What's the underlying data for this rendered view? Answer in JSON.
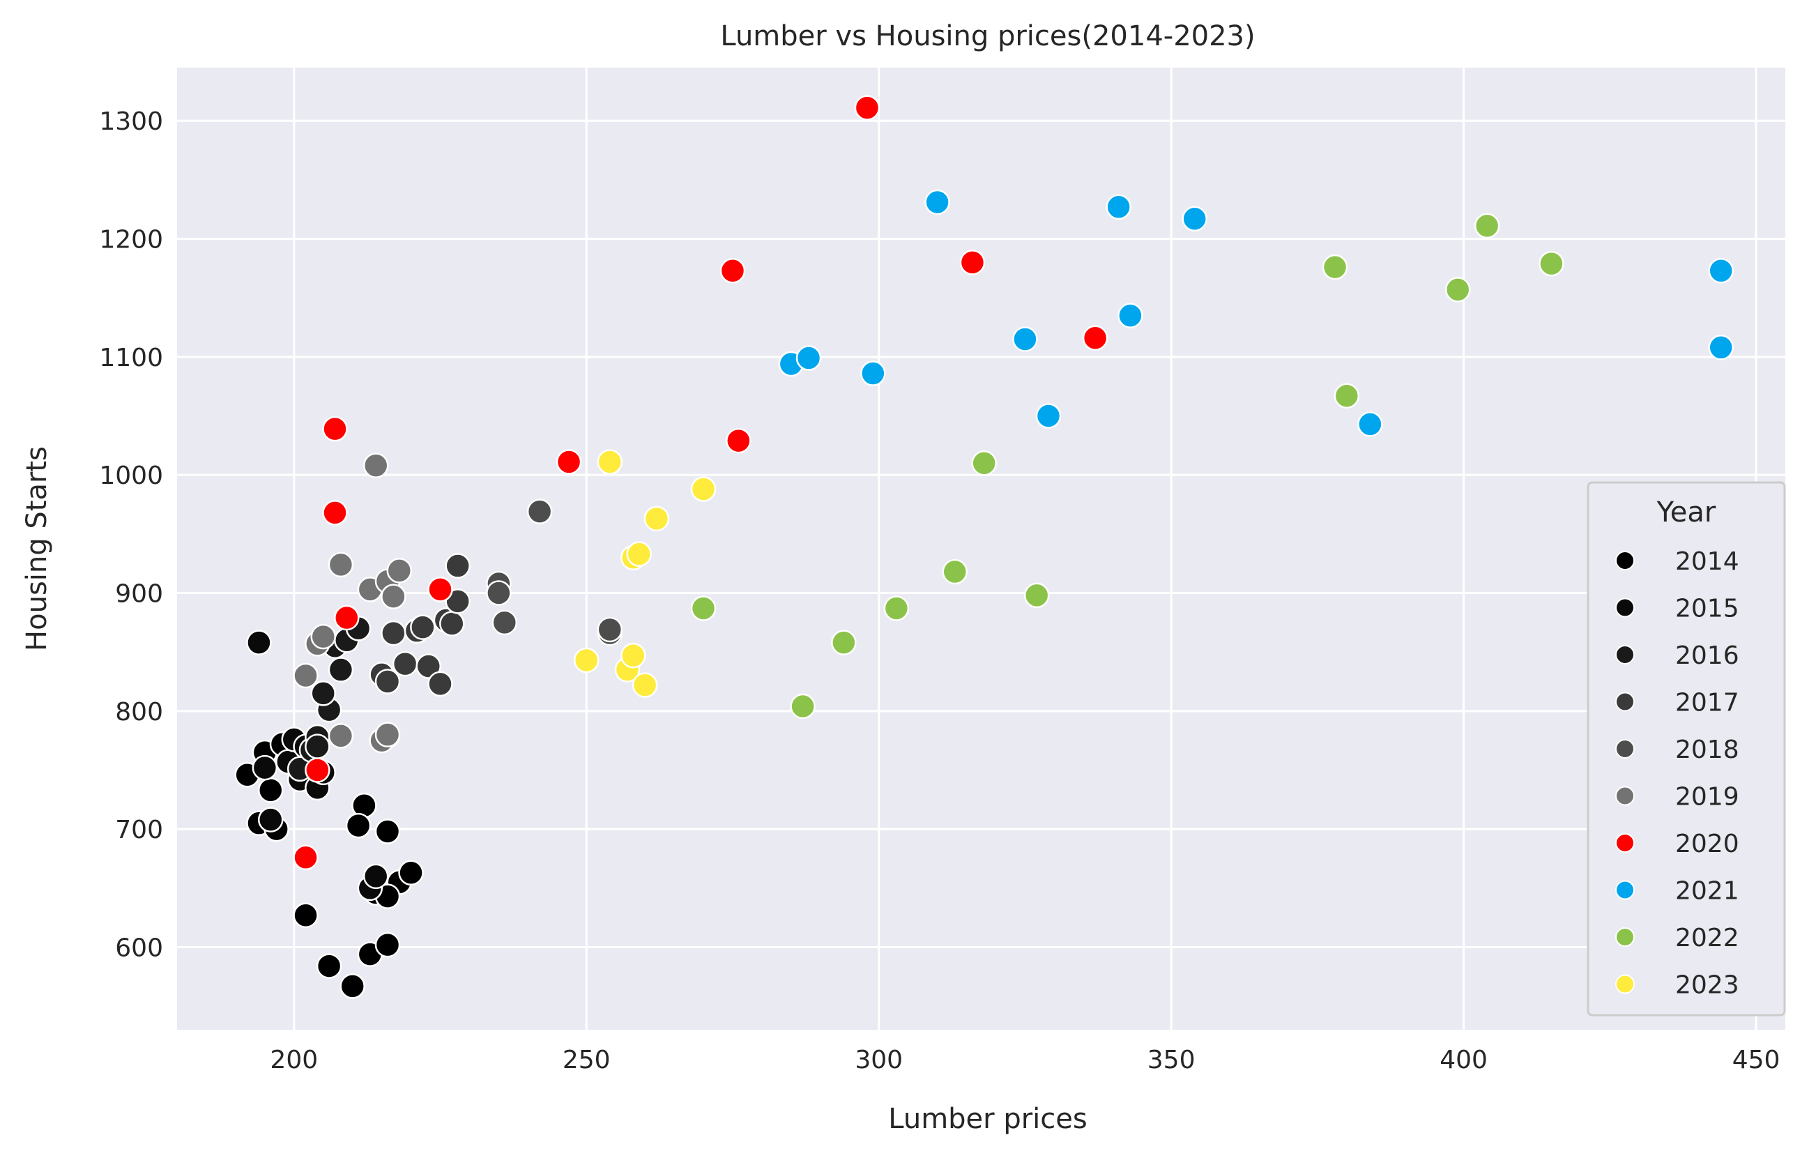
{
  "chart_data": {
    "type": "scatter",
    "title": "Lumber vs Housing prices(2014-2023)",
    "xlabel": "Lumber prices",
    "ylabel": "Housing Starts",
    "xlim": [
      180,
      455
    ],
    "ylim": [
      530,
      1345
    ],
    "xticks": [
      200,
      250,
      300,
      350,
      400,
      450
    ],
    "yticks": [
      600,
      700,
      800,
      900,
      1000,
      1100,
      1200,
      1300
    ],
    "grid": true,
    "background": "#eaeaf2",
    "legend": {
      "title": "Year",
      "placement": "right"
    },
    "series": [
      {
        "name": "2014",
        "color": "#000000",
        "points": [
          [
            192,
            746
          ],
          [
            194,
            705
          ],
          [
            196,
            733
          ],
          [
            197,
            700
          ],
          [
            195,
            765
          ],
          [
            198,
            772
          ],
          [
            202,
            627
          ],
          [
            206,
            584
          ],
          [
            210,
            567
          ],
          [
            213,
            594
          ],
          [
            216,
            602
          ],
          [
            218,
            655
          ],
          [
            220,
            663
          ],
          [
            214,
            646
          ],
          [
            216,
            643
          ],
          [
            212,
            720
          ],
          [
            211,
            703
          ],
          [
            216,
            698
          ]
        ]
      },
      {
        "name": "2015",
        "color": "#0a0a0a",
        "points": [
          [
            195,
            752
          ],
          [
            196,
            708
          ],
          [
            199,
            757
          ],
          [
            200,
            776
          ],
          [
            201,
            742
          ],
          [
            202,
            770
          ],
          [
            203,
            758
          ],
          [
            204,
            735
          ],
          [
            205,
            748
          ],
          [
            213,
            650
          ],
          [
            214,
            660
          ],
          [
            194,
            858
          ]
        ]
      },
      {
        "name": "2016",
        "color": "#1a1a1a",
        "points": [
          [
            201,
            751
          ],
          [
            203,
            767
          ],
          [
            204,
            778
          ],
          [
            206,
            801
          ],
          [
            205,
            815
          ],
          [
            207,
            855
          ],
          [
            208,
            835
          ],
          [
            209,
            860
          ],
          [
            211,
            870
          ],
          [
            204,
            770
          ]
        ]
      },
      {
        "name": "2017",
        "color": "#3a3a3a",
        "points": [
          [
            215,
            831
          ],
          [
            216,
            825
          ],
          [
            217,
            866
          ],
          [
            219,
            840
          ],
          [
            221,
            868
          ],
          [
            222,
            871
          ],
          [
            223,
            838
          ],
          [
            225,
            823
          ],
          [
            226,
            877
          ],
          [
            227,
            874
          ],
          [
            228,
            893
          ],
          [
            228,
            923
          ],
          [
            216,
            779
          ]
        ]
      },
      {
        "name": "2018",
        "color": "#4d4d4d",
        "points": [
          [
            235,
            908
          ],
          [
            235,
            900
          ],
          [
            236,
            875
          ],
          [
            242,
            969
          ],
          [
            254,
            866
          ],
          [
            254,
            869
          ]
        ]
      },
      {
        "name": "2019",
        "color": "#737373",
        "points": [
          [
            202,
            830
          ],
          [
            204,
            857
          ],
          [
            205,
            863
          ],
          [
            208,
            924
          ],
          [
            208,
            779
          ],
          [
            213,
            903
          ],
          [
            214,
            1008
          ],
          [
            215,
            775
          ],
          [
            216,
            910
          ],
          [
            217,
            897
          ],
          [
            218,
            919
          ],
          [
            216,
            780
          ]
        ]
      },
      {
        "name": "2020",
        "color": "#ff0000",
        "points": [
          [
            202,
            676
          ],
          [
            204,
            750
          ],
          [
            207,
            1039
          ],
          [
            207,
            968
          ],
          [
            209,
            879
          ],
          [
            225,
            903
          ],
          [
            247,
            1011
          ],
          [
            275,
            1173
          ],
          [
            276,
            1029
          ],
          [
            298,
            1311
          ],
          [
            316,
            1180
          ],
          [
            337,
            1116
          ]
        ]
      },
      {
        "name": "2021",
        "color": "#00a6ed",
        "points": [
          [
            285,
            1094
          ],
          [
            288,
            1099
          ],
          [
            299,
            1086
          ],
          [
            310,
            1231
          ],
          [
            325,
            1115
          ],
          [
            329,
            1050
          ],
          [
            341,
            1227
          ],
          [
            343,
            1135
          ],
          [
            354,
            1217
          ],
          [
            384,
            1043
          ],
          [
            444,
            1108
          ],
          [
            444,
            1173
          ]
        ]
      },
      {
        "name": "2022",
        "color": "#8bc34a",
        "points": [
          [
            270,
            887
          ],
          [
            287,
            804
          ],
          [
            294,
            858
          ],
          [
            303,
            887
          ],
          [
            313,
            918
          ],
          [
            318,
            1010
          ],
          [
            327,
            898
          ],
          [
            378,
            1176
          ],
          [
            380,
            1067
          ],
          [
            399,
            1157
          ],
          [
            404,
            1211
          ],
          [
            415,
            1179
          ]
        ]
      },
      {
        "name": "2023",
        "color": "#ffeb3b",
        "points": [
          [
            250,
            843
          ],
          [
            254,
            1011
          ],
          [
            257,
            835
          ],
          [
            258,
            930
          ],
          [
            258,
            847
          ],
          [
            259,
            933
          ],
          [
            260,
            822
          ],
          [
            262,
            963
          ],
          [
            270,
            988
          ]
        ]
      }
    ]
  }
}
